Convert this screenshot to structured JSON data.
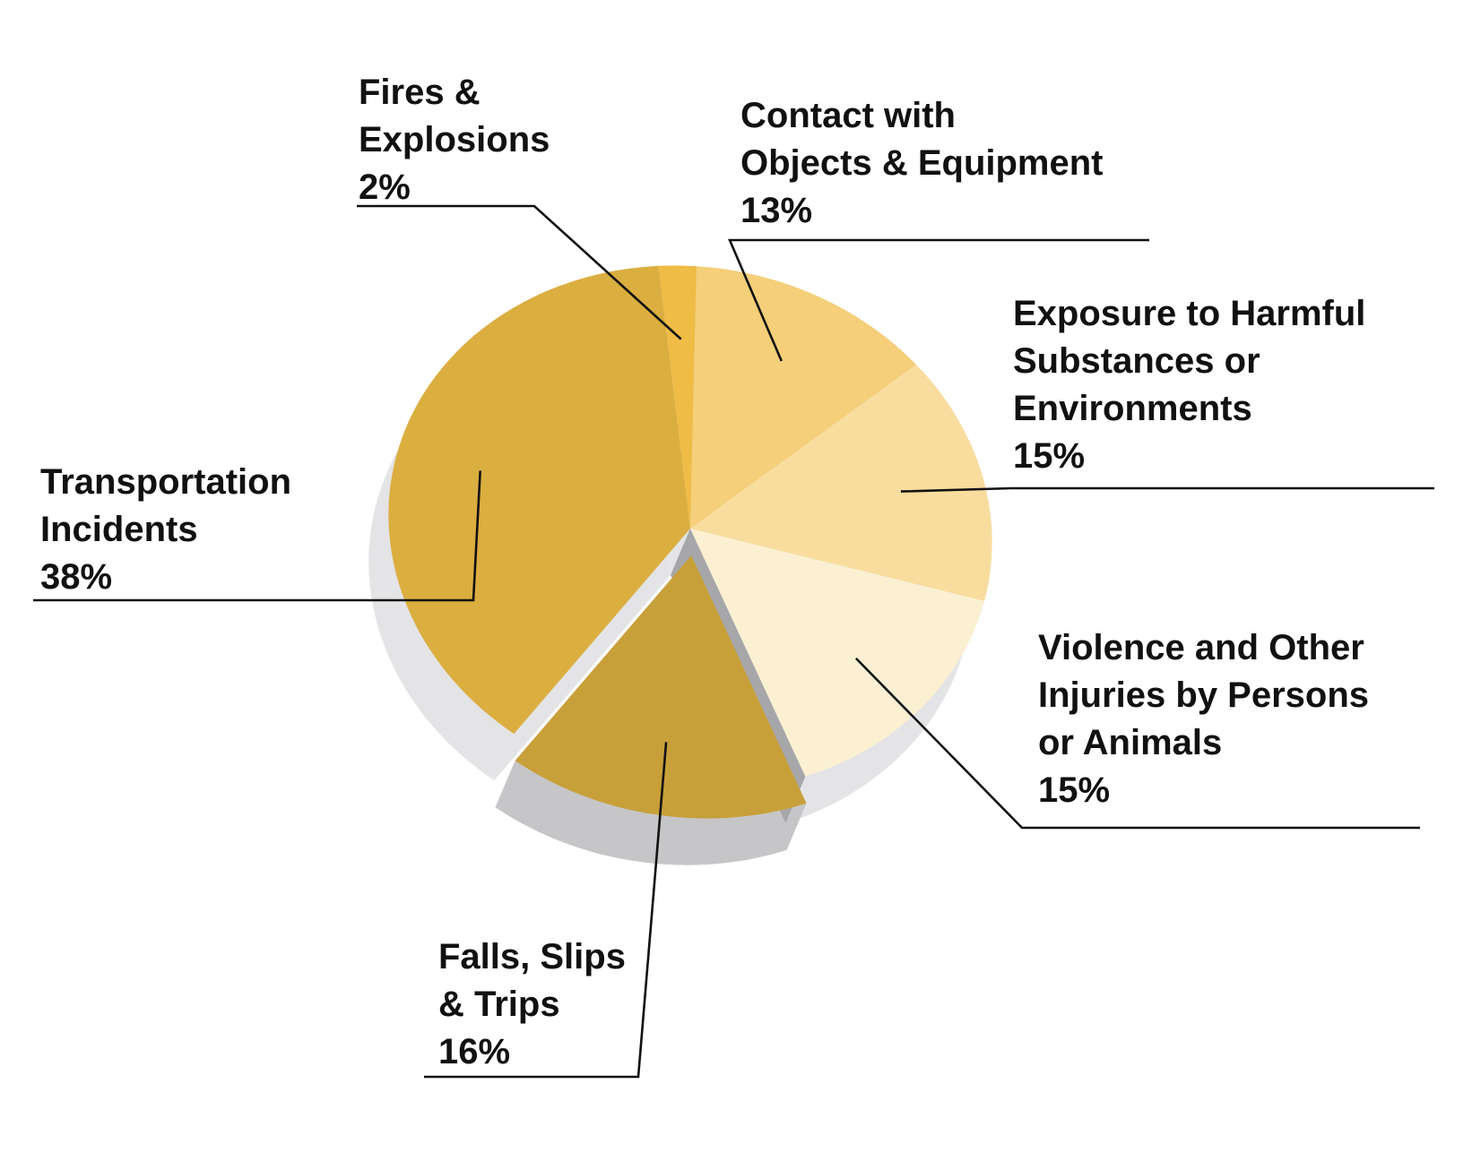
{
  "chart_data": {
    "type": "pie",
    "title": "",
    "slices": [
      {
        "label": "Fires & Explosions",
        "lines": [
          "Fires &",
          "Explosions"
        ],
        "pct_label": "2%",
        "value": 2,
        "color": "#efbc46",
        "exploded": false
      },
      {
        "label": "Contact with Objects & Equipment",
        "lines": [
          "Contact with",
          "Objects & Equipment"
        ],
        "pct_label": "13%",
        "value": 13,
        "color": "#f5cf79",
        "exploded": false
      },
      {
        "label": "Exposure to Harmful Substances or Environments",
        "lines": [
          "Exposure to Harmful",
          "Substances or",
          "Environments"
        ],
        "pct_label": "15%",
        "value": 15,
        "color": "#f8dd9e",
        "exploded": false
      },
      {
        "label": "Violence and Other Injuries by Persons or Animals",
        "lines": [
          "Violence and Other",
          "Injuries by Persons",
          "or Animals"
        ],
        "pct_label": "15%",
        "value": 15,
        "color": "#fbf0d2",
        "exploded": false
      },
      {
        "label": "Falls, Slips & Trips",
        "lines": [
          "Falls, Slips",
          "& Trips"
        ],
        "pct_label": "16%",
        "value": 16,
        "color": "#c8a03a",
        "exploded": true
      },
      {
        "label": "Transportation Incidents",
        "lines": [
          "Transportation",
          "Incidents"
        ],
        "pct_label": "38%",
        "value": 38,
        "color": "#dbae40",
        "exploded": false
      }
    ],
    "depth_colors": {
      "side": "#e4e4e6",
      "exploded_side": "#c6c6c8",
      "cut_face": "#a7a7aa"
    }
  }
}
